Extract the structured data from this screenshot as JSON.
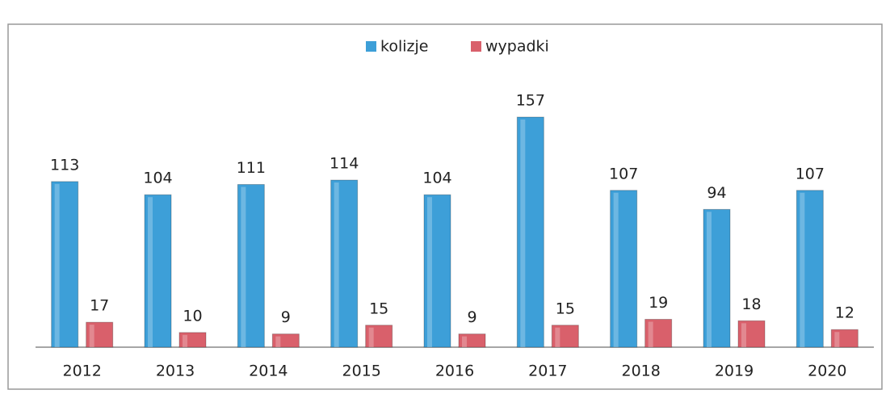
{
  "chart_data": {
    "type": "bar",
    "categories": [
      "2012",
      "2013",
      "2014",
      "2015",
      "2016",
      "2017",
      "2018",
      "2019",
      "2020"
    ],
    "series": [
      {
        "name": "kolizje",
        "color": "#3d9fd8",
        "values": [
          113,
          104,
          111,
          114,
          104,
          157,
          107,
          94,
          107
        ]
      },
      {
        "name": "wypadki",
        "color": "#d9606b",
        "values": [
          17,
          10,
          9,
          15,
          9,
          15,
          19,
          18,
          12
        ]
      }
    ],
    "legend": "top"
  }
}
